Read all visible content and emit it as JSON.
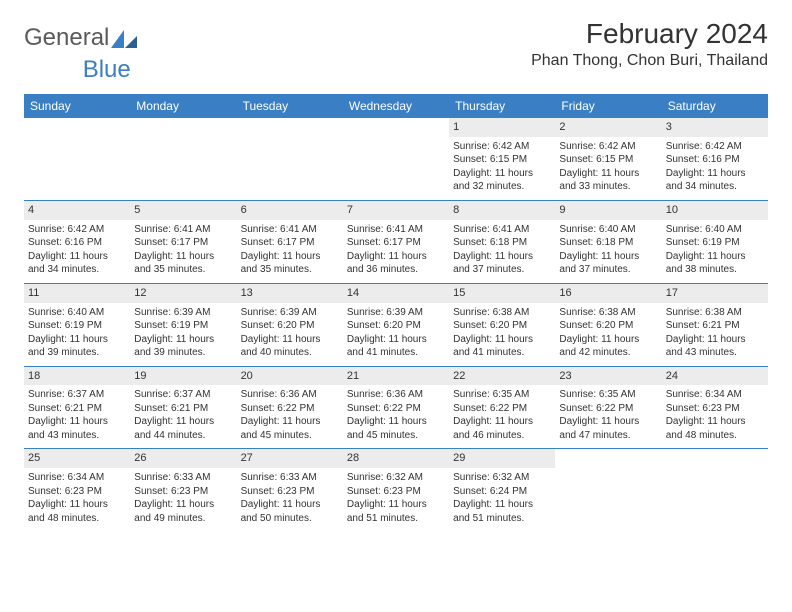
{
  "brand": {
    "part1": "General",
    "part2": "Blue"
  },
  "colors": {
    "accent": "#3a7fc4",
    "header_bg": "#3a7fc4",
    "daynum_bg": "#ececec",
    "text": "#333333",
    "background": "#ffffff"
  },
  "title": "February 2024",
  "location": "Phan Thong, Chon Buri, Thailand",
  "weekdays": [
    "Sunday",
    "Monday",
    "Tuesday",
    "Wednesday",
    "Thursday",
    "Friday",
    "Saturday"
  ],
  "layout": {
    "columns": 7,
    "rows": 5,
    "first_weekday_index": 4
  },
  "weeks": [
    [
      {
        "n": "",
        "sr": "",
        "ss": "",
        "dl": ""
      },
      {
        "n": "",
        "sr": "",
        "ss": "",
        "dl": ""
      },
      {
        "n": "",
        "sr": "",
        "ss": "",
        "dl": ""
      },
      {
        "n": "",
        "sr": "",
        "ss": "",
        "dl": ""
      },
      {
        "n": "1",
        "sr": "Sunrise: 6:42 AM",
        "ss": "Sunset: 6:15 PM",
        "dl": "Daylight: 11 hours and 32 minutes."
      },
      {
        "n": "2",
        "sr": "Sunrise: 6:42 AM",
        "ss": "Sunset: 6:15 PM",
        "dl": "Daylight: 11 hours and 33 minutes."
      },
      {
        "n": "3",
        "sr": "Sunrise: 6:42 AM",
        "ss": "Sunset: 6:16 PM",
        "dl": "Daylight: 11 hours and 34 minutes."
      }
    ],
    [
      {
        "n": "4",
        "sr": "Sunrise: 6:42 AM",
        "ss": "Sunset: 6:16 PM",
        "dl": "Daylight: 11 hours and 34 minutes."
      },
      {
        "n": "5",
        "sr": "Sunrise: 6:41 AM",
        "ss": "Sunset: 6:17 PM",
        "dl": "Daylight: 11 hours and 35 minutes."
      },
      {
        "n": "6",
        "sr": "Sunrise: 6:41 AM",
        "ss": "Sunset: 6:17 PM",
        "dl": "Daylight: 11 hours and 35 minutes."
      },
      {
        "n": "7",
        "sr": "Sunrise: 6:41 AM",
        "ss": "Sunset: 6:17 PM",
        "dl": "Daylight: 11 hours and 36 minutes."
      },
      {
        "n": "8",
        "sr": "Sunrise: 6:41 AM",
        "ss": "Sunset: 6:18 PM",
        "dl": "Daylight: 11 hours and 37 minutes."
      },
      {
        "n": "9",
        "sr": "Sunrise: 6:40 AM",
        "ss": "Sunset: 6:18 PM",
        "dl": "Daylight: 11 hours and 37 minutes."
      },
      {
        "n": "10",
        "sr": "Sunrise: 6:40 AM",
        "ss": "Sunset: 6:19 PM",
        "dl": "Daylight: 11 hours and 38 minutes."
      }
    ],
    [
      {
        "n": "11",
        "sr": "Sunrise: 6:40 AM",
        "ss": "Sunset: 6:19 PM",
        "dl": "Daylight: 11 hours and 39 minutes."
      },
      {
        "n": "12",
        "sr": "Sunrise: 6:39 AM",
        "ss": "Sunset: 6:19 PM",
        "dl": "Daylight: 11 hours and 39 minutes."
      },
      {
        "n": "13",
        "sr": "Sunrise: 6:39 AM",
        "ss": "Sunset: 6:20 PM",
        "dl": "Daylight: 11 hours and 40 minutes."
      },
      {
        "n": "14",
        "sr": "Sunrise: 6:39 AM",
        "ss": "Sunset: 6:20 PM",
        "dl": "Daylight: 11 hours and 41 minutes."
      },
      {
        "n": "15",
        "sr": "Sunrise: 6:38 AM",
        "ss": "Sunset: 6:20 PM",
        "dl": "Daylight: 11 hours and 41 minutes."
      },
      {
        "n": "16",
        "sr": "Sunrise: 6:38 AM",
        "ss": "Sunset: 6:20 PM",
        "dl": "Daylight: 11 hours and 42 minutes."
      },
      {
        "n": "17",
        "sr": "Sunrise: 6:38 AM",
        "ss": "Sunset: 6:21 PM",
        "dl": "Daylight: 11 hours and 43 minutes."
      }
    ],
    [
      {
        "n": "18",
        "sr": "Sunrise: 6:37 AM",
        "ss": "Sunset: 6:21 PM",
        "dl": "Daylight: 11 hours and 43 minutes."
      },
      {
        "n": "19",
        "sr": "Sunrise: 6:37 AM",
        "ss": "Sunset: 6:21 PM",
        "dl": "Daylight: 11 hours and 44 minutes."
      },
      {
        "n": "20",
        "sr": "Sunrise: 6:36 AM",
        "ss": "Sunset: 6:22 PM",
        "dl": "Daylight: 11 hours and 45 minutes."
      },
      {
        "n": "21",
        "sr": "Sunrise: 6:36 AM",
        "ss": "Sunset: 6:22 PM",
        "dl": "Daylight: 11 hours and 45 minutes."
      },
      {
        "n": "22",
        "sr": "Sunrise: 6:35 AM",
        "ss": "Sunset: 6:22 PM",
        "dl": "Daylight: 11 hours and 46 minutes."
      },
      {
        "n": "23",
        "sr": "Sunrise: 6:35 AM",
        "ss": "Sunset: 6:22 PM",
        "dl": "Daylight: 11 hours and 47 minutes."
      },
      {
        "n": "24",
        "sr": "Sunrise: 6:34 AM",
        "ss": "Sunset: 6:23 PM",
        "dl": "Daylight: 11 hours and 48 minutes."
      }
    ],
    [
      {
        "n": "25",
        "sr": "Sunrise: 6:34 AM",
        "ss": "Sunset: 6:23 PM",
        "dl": "Daylight: 11 hours and 48 minutes."
      },
      {
        "n": "26",
        "sr": "Sunrise: 6:33 AM",
        "ss": "Sunset: 6:23 PM",
        "dl": "Daylight: 11 hours and 49 minutes."
      },
      {
        "n": "27",
        "sr": "Sunrise: 6:33 AM",
        "ss": "Sunset: 6:23 PM",
        "dl": "Daylight: 11 hours and 50 minutes."
      },
      {
        "n": "28",
        "sr": "Sunrise: 6:32 AM",
        "ss": "Sunset: 6:23 PM",
        "dl": "Daylight: 11 hours and 51 minutes."
      },
      {
        "n": "29",
        "sr": "Sunrise: 6:32 AM",
        "ss": "Sunset: 6:24 PM",
        "dl": "Daylight: 11 hours and 51 minutes."
      },
      {
        "n": "",
        "sr": "",
        "ss": "",
        "dl": ""
      },
      {
        "n": "",
        "sr": "",
        "ss": "",
        "dl": ""
      }
    ]
  ]
}
